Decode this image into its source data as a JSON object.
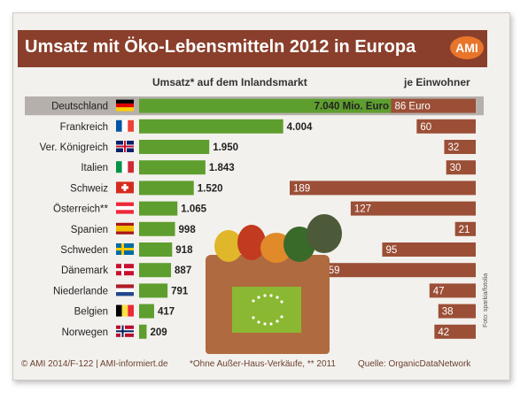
{
  "chart_data": {
    "type": "bar",
    "title": "Umsatz mit Öko-Lebensmitteln 2012 in Europa",
    "logo": "AMI",
    "left_panel_label": "Umsatz* auf dem Inlandsmarkt",
    "right_panel_label": "je Einwohner",
    "categories": [
      "Deutschland",
      "Frankreich",
      "Ver. Königreich",
      "Italien",
      "Schweiz",
      "Österreich**",
      "Spanien",
      "Schweden",
      "Dänemark",
      "Niederlande",
      "Belgien",
      "Norwegen"
    ],
    "series": [
      {
        "name": "Umsatz* auf dem Inlandsmarkt",
        "values": [
          7040,
          4004,
          1950,
          1843,
          1520,
          1065,
          998,
          918,
          887,
          791,
          417,
          209
        ],
        "labels": [
          "7.040 Mio. Euro",
          "4.004",
          "1.950",
          "1.843",
          "1.520",
          "1.065",
          "998",
          "918",
          "887",
          "791",
          "417",
          "209"
        ]
      },
      {
        "name": "je Einwohner",
        "values": [
          86,
          60,
          32,
          30,
          189,
          127,
          21,
          95,
          159,
          47,
          38,
          42
        ],
        "labels": [
          "86 Euro",
          "60",
          "32",
          "30",
          "189",
          "127",
          "21",
          "95",
          "159",
          "47",
          "38",
          "42"
        ]
      }
    ],
    "colors": {
      "sales_bar": "#5e9e2e",
      "per_capita_bar": "#9b4f37",
      "highlight_row": "#b5b0ab",
      "title_bg": "#8a3f2c"
    }
  },
  "footnotes": {
    "copyright": "© AMI 2014/F-122 | AMI-informiert.de",
    "note": "*Ohne Außer-Haus-Verkäufe, ** 2011",
    "source": "Quelle: OrganicDataNetwork",
    "photo_credit": "Foto: sparkia/fotolia"
  },
  "flags": [
    "flag-germany",
    "flag-france",
    "flag-uk",
    "flag-italy",
    "flag-switzerland",
    "flag-austria",
    "flag-spain",
    "flag-sweden",
    "flag-denmark",
    "flag-netherlands",
    "flag-belgium",
    "flag-norway"
  ]
}
